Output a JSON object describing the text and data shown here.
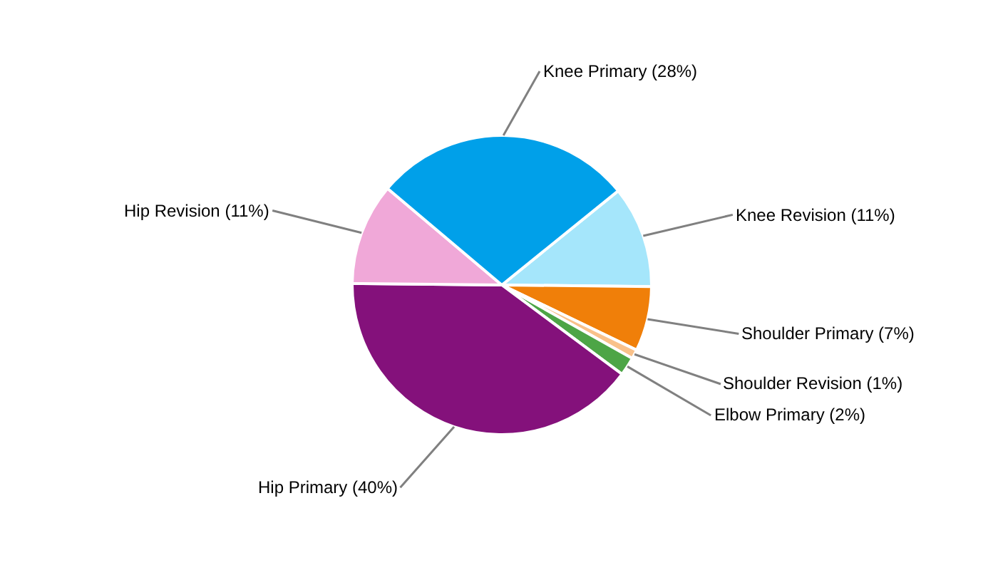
{
  "chart_data": {
    "type": "pie",
    "categories": [
      "Knee Revision (11%)",
      "Shoulder Primary (7%)",
      "Shoulder Revision (1%)",
      "Elbow Primary (2%)",
      "Hip Primary (40%)",
      "Hip Revision (11%)",
      "Knee Primary (28%)"
    ],
    "values": [
      11,
      7,
      1,
      2,
      40,
      11,
      28
    ],
    "colors": [
      "#a5e6fb",
      "#f07f09",
      "#f9c18a",
      "#4da546",
      "#84117b",
      "#f0a8d8",
      "#00a0e9"
    ],
    "legend": false
  }
}
